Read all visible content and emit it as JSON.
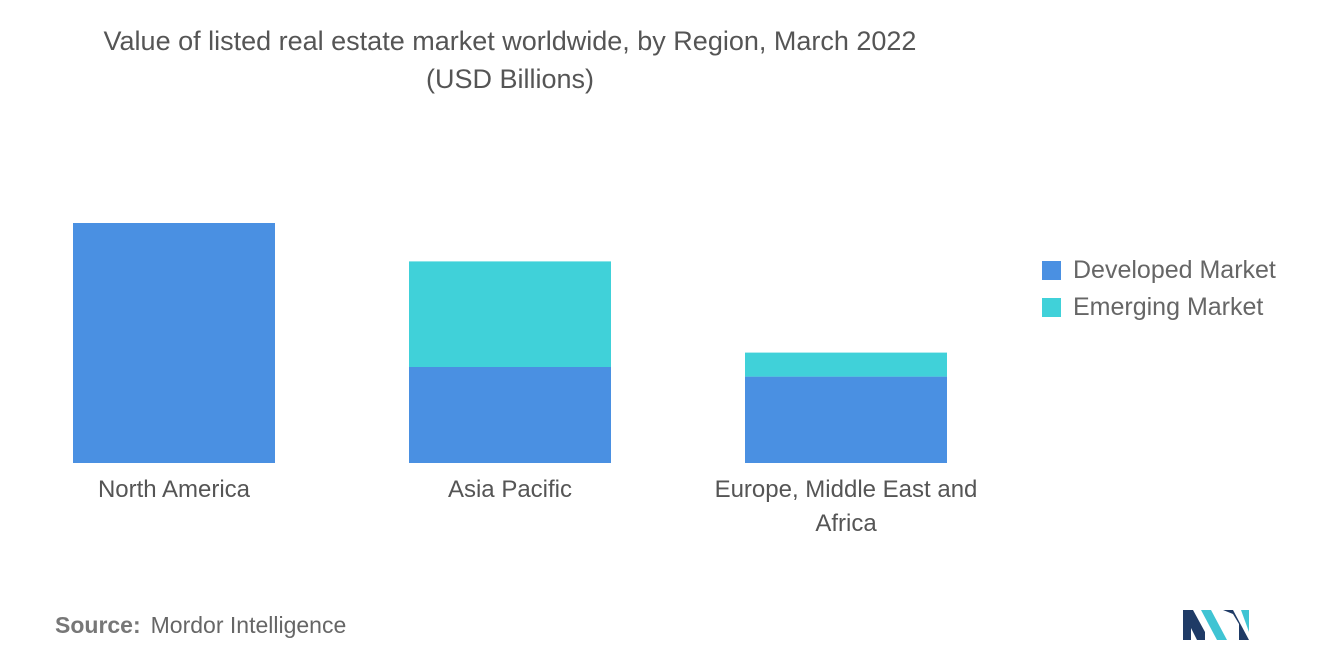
{
  "chart_data": {
    "type": "bar",
    "stacked": true,
    "title": [
      "Value of listed real estate market worldwide, by Region, March 2022",
      "(USD Billions)"
    ],
    "categories": [
      "North America",
      "Asia Pacific",
      "Europe, Middle East and Africa"
    ],
    "series": [
      {
        "name": "Developed Market",
        "color": "#4a90e2",
        "values": [
          100,
          40,
          36
        ]
      },
      {
        "name": "Emerging Market",
        "color": "#40d1d9",
        "values": [
          0,
          44,
          10
        ]
      }
    ],
    "ylim": [
      0,
      100
    ],
    "grid": false,
    "legend_position": "right"
  },
  "footer": {
    "source_label": "Source:",
    "source_value": "Mordor Intelligence"
  },
  "logo": {
    "icon": "mordor-intelligence-logo",
    "colors": [
      "#1f3b66",
      "#3fc4d3"
    ]
  }
}
